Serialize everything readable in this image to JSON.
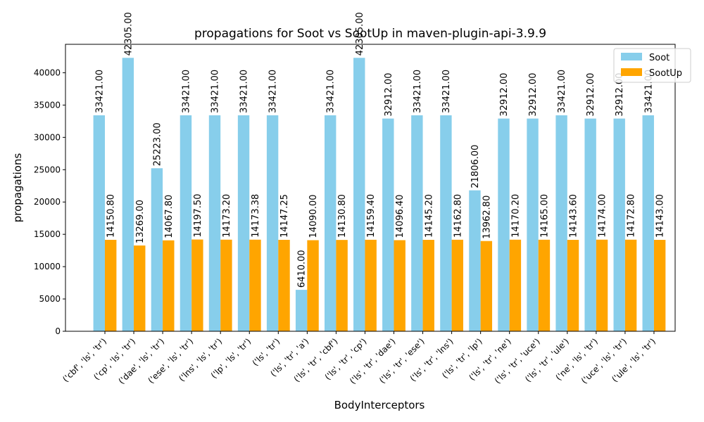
{
  "chart_data": {
    "type": "bar",
    "title": "propagations for Soot vs SootUp in maven-plugin-api-3.9.9",
    "xlabel": "BodyInterceptors",
    "ylabel": "propagations",
    "ylim": [
      0,
      44400
    ],
    "yticks": [
      0,
      5000,
      10000,
      15000,
      20000,
      25000,
      30000,
      35000,
      40000
    ],
    "grid": false,
    "legend_position": "top-right",
    "categories": [
      "('cbf', 'ls', 'tr')",
      "('cp', 'ls', 'tr')",
      "('dae', 'ls', 'tr')",
      "('ese', 'ls', 'tr')",
      "('lns', 'ls', 'tr')",
      "('lp', 'ls', 'tr')",
      "('ls', 'tr')",
      "('ls', 'tr', 'a')",
      "('ls', 'tr', 'cbf')",
      "('ls', 'tr', 'cp')",
      "('ls', 'tr', 'dae')",
      "('ls', 'tr', 'ese')",
      "('ls', 'tr', 'lns')",
      "('ls', 'tr', 'lp')",
      "('ls', 'tr', 'ne')",
      "('ls', 'tr', 'uce')",
      "('ls', 'tr', 'ule')",
      "('ne', 'ls', 'tr')",
      "('uce', 'ls', 'tr')",
      "('ule', 'ls', 'tr')"
    ],
    "series": [
      {
        "name": "Soot",
        "color": "#87ceeb",
        "values": [
          33421.0,
          42305.0,
          25223.0,
          33421.0,
          33421.0,
          33421.0,
          33421.0,
          6410.0,
          33421.0,
          42305.0,
          32912.0,
          33421.0,
          33421.0,
          21806.0,
          32912.0,
          32912.0,
          33421.0,
          32912.0,
          32912.0,
          33421.0
        ]
      },
      {
        "name": "SootUp",
        "color": "#ffa500",
        "values": [
          14150.8,
          13269.0,
          14067.8,
          14197.5,
          14173.2,
          14173.38,
          14147.25,
          14090.0,
          14130.8,
          14159.4,
          14096.4,
          14145.2,
          14162.8,
          13962.8,
          14170.2,
          14165.0,
          14143.6,
          14174.0,
          14172.8,
          14143.0
        ]
      }
    ]
  }
}
